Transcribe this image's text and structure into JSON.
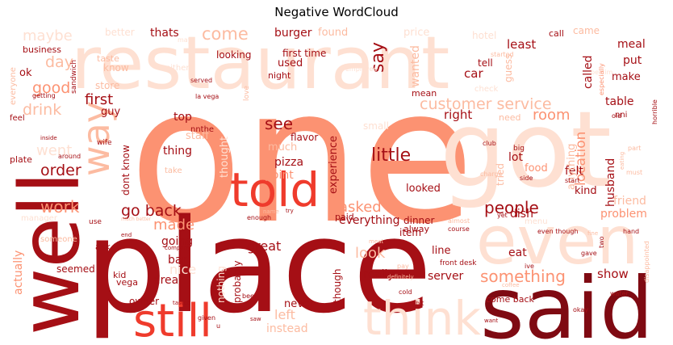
{
  "title": "Negative WordCloud",
  "palette": {
    "darkest": "#7f0a12",
    "dark": "#a50f15",
    "red": "#cb181d",
    "bright": "#ef3b2c",
    "salmon": "#fc9272",
    "light": "#fcbba1",
    "pale": "#fee0d2",
    "faint": "#fff5f0"
  },
  "words": [
    {
      "text": "one",
      "color": "#fc9272"
    },
    {
      "text": "place",
      "color": "#a50f15"
    },
    {
      "text": "restaurant",
      "color": "#fee0d2"
    },
    {
      "text": "got",
      "color": "#fee0d2"
    },
    {
      "text": "well",
      "color": "#a50f15"
    },
    {
      "text": "said",
      "color": "#7f0a12"
    },
    {
      "text": "even",
      "color": "#fee0d2"
    },
    {
      "text": "told",
      "color": "#ef3b2c"
    },
    {
      "text": "still",
      "color": "#ef3b2c"
    },
    {
      "text": "think",
      "color": "#fee0d2"
    },
    {
      "text": "way",
      "color": "#fcbba1"
    },
    {
      "text": "customer service",
      "color": "#fcbba1"
    },
    {
      "text": "go back",
      "color": "#a50f15"
    },
    {
      "text": "people",
      "color": "#a50f15"
    },
    {
      "text": "little",
      "color": "#a50f15"
    },
    {
      "text": "order",
      "color": "#a50f15"
    },
    {
      "text": "work",
      "color": "#fc9272"
    },
    {
      "text": "something",
      "color": "#fc9272"
    },
    {
      "text": "good",
      "color": "#fc9272"
    },
    {
      "text": "see",
      "color": "#a50f15"
    },
    {
      "text": "come",
      "color": "#fcbba1"
    },
    {
      "text": "maybe",
      "color": "#fee0d2"
    },
    {
      "text": "say",
      "color": "#a50f15"
    },
    {
      "text": "drink",
      "color": "#fcbba1"
    },
    {
      "text": "day",
      "color": "#fcbba1"
    },
    {
      "text": "first",
      "color": "#a50f15"
    },
    {
      "text": "went",
      "color": "#fee0d2"
    },
    {
      "text": "burger",
      "color": "#a50f15"
    },
    {
      "text": "thats",
      "color": "#a50f15"
    },
    {
      "text": "found",
      "color": "#fcbba1"
    },
    {
      "text": "price",
      "color": "#fee0d2"
    },
    {
      "text": "hotel",
      "color": "#fee0d2"
    },
    {
      "text": "least",
      "color": "#a50f15"
    },
    {
      "text": "call",
      "color": "#a50f15"
    },
    {
      "text": "came",
      "color": "#fcbba1"
    },
    {
      "text": "meal",
      "color": "#a50f15"
    },
    {
      "text": "better",
      "color": "#fee0d2"
    },
    {
      "text": "may",
      "color": "#fee0d2"
    },
    {
      "text": "today",
      "color": "#fee0d2"
    },
    {
      "text": "looking",
      "color": "#a50f15"
    },
    {
      "text": "first time",
      "color": "#a50f15"
    },
    {
      "text": "night",
      "color": "#a50f15"
    },
    {
      "text": "used",
      "color": "#a50f15"
    },
    {
      "text": "business",
      "color": "#a50f15"
    },
    {
      "text": "taste",
      "color": "#fcbba1"
    },
    {
      "text": "know",
      "color": "#fcbba1"
    },
    {
      "text": "store",
      "color": "#fcbba1"
    },
    {
      "text": "ok",
      "color": "#a50f15"
    },
    {
      "text": "served",
      "color": "#a50f15"
    },
    {
      "text": "wanted",
      "color": "#fcbba1"
    },
    {
      "text": "tell",
      "color": "#a50f15"
    },
    {
      "text": "car",
      "color": "#a50f15"
    },
    {
      "text": "guess",
      "color": "#fcbba1"
    },
    {
      "text": "called",
      "color": "#a50f15"
    },
    {
      "text": "put",
      "color": "#a50f15"
    },
    {
      "text": "make",
      "color": "#a50f15"
    },
    {
      "text": "table",
      "color": "#a50f15"
    },
    {
      "text": "room",
      "color": "#fc9272"
    },
    {
      "text": "right",
      "color": "#a50f15"
    },
    {
      "text": "mean",
      "color": "#a50f15"
    },
    {
      "text": "location",
      "color": "#fc9272"
    },
    {
      "text": "husband",
      "color": "#a50f15"
    },
    {
      "text": "top",
      "color": "#a50f15"
    },
    {
      "text": "guy",
      "color": "#a50f15"
    },
    {
      "text": "staff",
      "color": "#fcbba1"
    },
    {
      "text": "thought",
      "color": "#fee0d2"
    },
    {
      "text": "thing",
      "color": "#a50f15"
    },
    {
      "text": "much",
      "color": "#fcbba1"
    },
    {
      "text": "flavor",
      "color": "#a50f15"
    },
    {
      "text": "pizza",
      "color": "#a50f15"
    },
    {
      "text": "point",
      "color": "#fc9272"
    },
    {
      "text": "experience",
      "color": "#a50f15"
    },
    {
      "text": "looked",
      "color": "#a50f15"
    },
    {
      "text": "lot",
      "color": "#a50f15"
    },
    {
      "text": "felt",
      "color": "#a50f15"
    },
    {
      "text": "kind",
      "color": "#a50f15"
    },
    {
      "text": "friend",
      "color": "#fcbba1"
    },
    {
      "text": "problem",
      "color": "#fc9272"
    },
    {
      "text": "food",
      "color": "#fc9272"
    },
    {
      "text": "tried",
      "color": "#fcbba1"
    },
    {
      "text": "dish",
      "color": "#a50f15"
    },
    {
      "text": "made",
      "color": "#fc9272"
    },
    {
      "text": "asked",
      "color": "#fc9272"
    },
    {
      "text": "everything",
      "color": "#a50f15"
    },
    {
      "text": "going",
      "color": "#a50f15"
    },
    {
      "text": "bar",
      "color": "#a50f15"
    },
    {
      "text": "great",
      "color": "#a50f15"
    },
    {
      "text": "look",
      "color": "#fcbba1"
    },
    {
      "text": "item",
      "color": "#a50f15"
    },
    {
      "text": "eat",
      "color": "#a50f15"
    },
    {
      "text": "area",
      "color": "#a50f15"
    },
    {
      "text": "really",
      "color": "#a50f15"
    },
    {
      "text": "server",
      "color": "#a50f15"
    },
    {
      "text": "show",
      "color": "#a50f15"
    },
    {
      "text": "actually",
      "color": "#fc9272"
    },
    {
      "text": "seemed",
      "color": "#a50f15"
    },
    {
      "text": "never",
      "color": "#a50f15"
    },
    {
      "text": "left",
      "color": "#fcbba1"
    },
    {
      "text": "instead",
      "color": "#fcbba1"
    },
    {
      "text": "owner",
      "color": "#a50f15"
    },
    {
      "text": "come back",
      "color": "#a50f15"
    },
    {
      "text": "dinner",
      "color": "#a50f15"
    },
    {
      "text": "alway",
      "color": "#a50f15"
    },
    {
      "text": "paid",
      "color": "#a50f15"
    },
    {
      "text": "vega",
      "color": "#a50f15"
    },
    {
      "text": "kid",
      "color": "#a50f15"
    },
    {
      "text": "nice",
      "color": "#fee0d2"
    },
    {
      "text": "line",
      "color": "#a50f15"
    },
    {
      "text": "front desk",
      "color": "#a50f15"
    },
    {
      "text": "bestim",
      "color": "#fee0d2"
    },
    {
      "text": "nnthe",
      "color": "#a50f15"
    },
    {
      "text": "nni",
      "color": "#a50f15"
    },
    {
      "text": "small",
      "color": "#fee0d2"
    },
    {
      "text": "dont know",
      "color": "#a50f15"
    },
    {
      "text": "anything",
      "color": "#fcbba1"
    },
    {
      "text": "probably",
      "color": "#a50f15"
    },
    {
      "text": "nothing",
      "color": "#fee0d2"
    },
    {
      "text": "though",
      "color": "#a50f15"
    },
    {
      "text": "ask",
      "color": "#a50f15"
    },
    {
      "text": "plate",
      "color": "#a50f15"
    },
    {
      "text": "feel",
      "color": "#a50f15"
    },
    {
      "text": "wife",
      "color": "#a50f15"
    },
    {
      "text": "sandwich",
      "color": "#a50f15"
    },
    {
      "text": "everyone",
      "color": "#fcbba1"
    },
    {
      "text": "getting",
      "color": "#a50f15"
    },
    {
      "text": "either",
      "color": "#fee0d2"
    },
    {
      "text": "love",
      "color": "#fcbba1"
    },
    {
      "text": "employee",
      "color": "#fee0d2"
    },
    {
      "text": "started",
      "color": "#fcbba1"
    },
    {
      "text": "check",
      "color": "#fee0d2"
    },
    {
      "text": "especially",
      "color": "#fc9272"
    },
    {
      "text": "horrible",
      "color": "#a50f15"
    },
    {
      "text": "la vega",
      "color": "#a50f15"
    },
    {
      "text": "need",
      "color": "#fcbba1"
    },
    {
      "text": "old",
      "color": "#a50f15"
    },
    {
      "text": "big",
      "color": "#a50f15"
    },
    {
      "text": "club",
      "color": "#a50f15"
    },
    {
      "text": "part",
      "color": "#fcbba1"
    },
    {
      "text": "eating",
      "color": "#fcbba1"
    },
    {
      "text": "side",
      "color": "#a50f15"
    },
    {
      "text": "start",
      "color": "#a50f15"
    },
    {
      "text": "must",
      "color": "#fcbba1"
    },
    {
      "text": "charge",
      "color": "#fcbba1"
    },
    {
      "text": "enough",
      "color": "#a50f15"
    },
    {
      "text": "name",
      "color": "#fcbba1"
    },
    {
      "text": "try",
      "color": "#a50f15"
    },
    {
      "text": "almost",
      "color": "#fcbba1"
    },
    {
      "text": "course",
      "color": "#a50f15"
    },
    {
      "text": "yet",
      "color": "#a50f15"
    },
    {
      "text": "menu",
      "color": "#fee0d2"
    },
    {
      "text": "even though",
      "color": "#a50f15"
    },
    {
      "text": "fine",
      "color": "#fcbba1"
    },
    {
      "text": "hand",
      "color": "#a50f15"
    },
    {
      "text": "two",
      "color": "#a50f15"
    },
    {
      "text": "gave",
      "color": "#a50f15"
    },
    {
      "text": "ive",
      "color": "#a50f15"
    },
    {
      "text": "water",
      "color": "#a50f15"
    },
    {
      "text": "okay",
      "color": "#a50f15"
    },
    {
      "text": "coffee",
      "color": "#fcbba1"
    },
    {
      "text": "cold",
      "color": "#a50f15"
    },
    {
      "text": "bit",
      "color": "#a50f15"
    },
    {
      "text": "want",
      "color": "#a50f15"
    },
    {
      "text": "saw",
      "color": "#a50f15"
    },
    {
      "text": "given",
      "color": "#a50f15"
    },
    {
      "text": "beer",
      "color": "#a50f15"
    },
    {
      "text": "tasted",
      "color": "#a50f15"
    },
    {
      "text": "end",
      "color": "#a50f15"
    },
    {
      "text": "someone",
      "color": "#fcbba1"
    },
    {
      "text": "use",
      "color": "#a50f15"
    },
    {
      "text": "inside",
      "color": "#a50f15"
    },
    {
      "text": "around",
      "color": "#a50f15"
    },
    {
      "text": "take",
      "color": "#fcbba1"
    },
    {
      "text": "company",
      "color": "#a50f15"
    },
    {
      "text": "pay",
      "color": "#fcbba1"
    },
    {
      "text": "definitely",
      "color": "#fcbba1"
    },
    {
      "text": "got",
      "color": "#fcbba1"
    },
    {
      "text": "u",
      "color": "#a50f15"
    },
    {
      "text": "meat",
      "color": "#fcbba1"
    },
    {
      "text": "much better",
      "color": "#fcbba1"
    },
    {
      "text": "manager",
      "color": "#fee0d2"
    },
    {
      "text": "disappointed",
      "color": "#fcbba1"
    }
  ]
}
